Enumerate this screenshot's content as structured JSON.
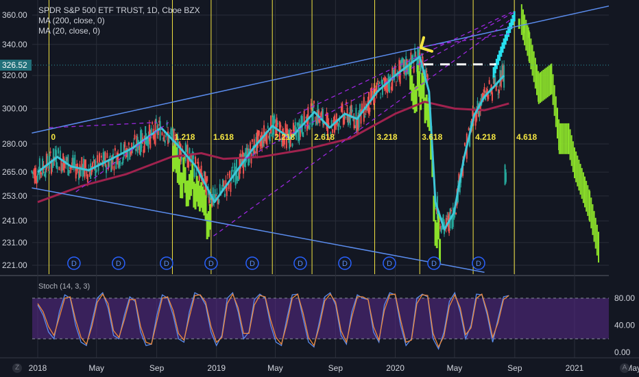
{
  "legend": {
    "title": "SPDR S&P 500 ETF TRUST, 1D, Cboe BZX",
    "ma200": "MA (200, close, 0)",
    "ma20": "MA (20, close, 0)"
  },
  "stoch_label": "Stoch (14, 3, 3)",
  "z_button": "Z",
  "a_button": "A",
  "colors": {
    "background": "#131722",
    "grid": "#2a2e39",
    "vline": "#f5e642",
    "trendline": "#5b8def",
    "dashed": "#9c27e0",
    "ma20": "#3ec6d8",
    "ma200": "#a0224e",
    "forecast": "#8be02a",
    "projection": "#27e0ef",
    "stoch_band": "#5a2a8a",
    "stoch_k": "#5b8def",
    "stoch_d": "#f08a3c",
    "current_price_tag": "#22707a"
  },
  "chart_data": [
    {
      "type": "candlestick",
      "title": "SPDR S&P 500 ETF TRUST, 1D, Cboe BZX",
      "x_tick_labels": [
        "2018",
        "May",
        "Sep",
        "2019",
        "May",
        "Sep",
        "2020",
        "May",
        "Sep",
        "2021",
        "May"
      ],
      "y_tick_labels": [
        "360.00",
        "340.00",
        "320.00",
        "300.00",
        "280.00",
        "265.00",
        "253.00",
        "241.00",
        "231.00",
        "221.00"
      ],
      "y_ticks": [
        360,
        340,
        320,
        300,
        280,
        265,
        253,
        241,
        231,
        221
      ],
      "current_price": 326.52,
      "current_price_label": "326.52",
      "scale": "log",
      "fib_time_labels": [
        "0",
        "1.218",
        "1.618",
        "2.218",
        "2.618",
        "3.218",
        "3.618",
        "4.218",
        "4.618"
      ],
      "fib_time_dates": [
        "2018-01-24",
        "2018-10-03",
        "2018-12-21",
        "2019-04-25",
        "2019-07-15",
        "2019-11-20",
        "2020-02-20",
        "2020-06-08",
        "2020-08-31"
      ],
      "event_markers": [
        "D",
        "D",
        "D",
        "D",
        "D",
        "D",
        "D",
        "D",
        "D",
        "D"
      ],
      "event_dates": [
        "2018-03-16",
        "2018-06-15",
        "2018-09-21",
        "2018-12-21",
        "2019-03-15",
        "2019-06-21",
        "2019-09-20",
        "2019-12-20",
        "2020-03-20",
        "2020-06-19"
      ],
      "series": [
        {
          "name": "MA (20, close, 0)",
          "points": [
            [
              "2018-01-01",
              265
            ],
            [
              "2018-02-10",
              273
            ],
            [
              "2018-03-10",
              268
            ],
            [
              "2018-04-15",
              266
            ],
            [
              "2018-06-01",
              272
            ],
            [
              "2018-07-15",
              278
            ],
            [
              "2018-09-10",
              289
            ],
            [
              "2018-10-15",
              279
            ],
            [
              "2018-11-20",
              268
            ],
            [
              "2018-12-28",
              250
            ],
            [
              "2019-02-01",
              262
            ],
            [
              "2019-03-15",
              277
            ],
            [
              "2019-04-25",
              290
            ],
            [
              "2019-06-01",
              283
            ],
            [
              "2019-07-20",
              298
            ],
            [
              "2019-08-20",
              289
            ],
            [
              "2019-09-20",
              297
            ],
            [
              "2019-10-15",
              294
            ],
            [
              "2019-11-25",
              310
            ],
            [
              "2020-01-01",
              320
            ],
            [
              "2020-02-20",
              332
            ],
            [
              "2020-03-10",
              310
            ],
            [
              "2020-03-23",
              250
            ],
            [
              "2020-04-10",
              237
            ],
            [
              "2020-04-30",
              245
            ],
            [
              "2020-05-20",
              272
            ],
            [
              "2020-06-10",
              296
            ],
            [
              "2020-07-01",
              307
            ],
            [
              "2020-07-20",
              313
            ],
            [
              "2020-08-10",
              320
            ]
          ]
        },
        {
          "name": "MA (200, close, 0)",
          "points": [
            [
              "2018-01-01",
              250
            ],
            [
              "2018-04-01",
              258
            ],
            [
              "2018-07-01",
              264
            ],
            [
              "2018-10-01",
              273
            ],
            [
              "2018-12-01",
              275
            ],
            [
              "2019-01-15",
              272
            ],
            [
              "2019-04-01",
              273
            ],
            [
              "2019-07-01",
              277
            ],
            [
              "2019-10-01",
              283
            ],
            [
              "2020-01-01",
              297
            ],
            [
              "2020-03-01",
              304
            ],
            [
              "2020-05-01",
              300
            ],
            [
              "2020-07-01",
              299
            ],
            [
              "2020-08-20",
              303
            ]
          ]
        },
        {
          "name": "forecast",
          "points": [
            [
              "2020-09-15",
              357
            ],
            [
              "2020-10-01",
              338
            ],
            [
              "2020-10-20",
              312
            ],
            [
              "2020-11-15",
              318
            ],
            [
              "2020-12-01",
              283
            ],
            [
              "2020-12-20",
              283
            ],
            [
              "2021-01-01",
              270
            ],
            [
              "2021-02-01",
              248
            ],
            [
              "2021-02-20",
              228
            ]
          ]
        }
      ],
      "trendlines": [
        {
          "from": [
            "2017-12-20",
            286
          ],
          "to": [
            "2021-03-20",
            367
          ]
        },
        {
          "from": [
            "2017-12-20",
            257
          ],
          "to": [
            "2020-07-01",
            218
          ]
        }
      ]
    },
    {
      "type": "line",
      "title": "Stoch (14, 3, 3)",
      "y_tick_labels": [
        "80.00",
        "40.00",
        "0.00"
      ],
      "y_ticks": [
        80,
        40,
        0
      ],
      "band": [
        20,
        80
      ],
      "series": [
        {
          "name": "%K",
          "values": [
            70,
            55,
            30,
            20,
            60,
            85,
            80,
            40,
            15,
            10,
            45,
            80,
            88,
            65,
            25,
            20,
            55,
            82,
            75,
            30,
            10,
            12,
            55,
            85,
            80,
            55,
            20,
            15,
            60,
            88,
            84,
            70,
            30,
            10,
            25,
            80,
            88,
            60,
            20,
            30,
            78,
            86,
            80,
            40,
            15,
            10,
            50,
            85,
            86,
            50,
            15,
            8,
            45,
            82,
            88,
            70,
            25,
            12,
            60,
            85,
            80,
            78,
            30,
            15,
            70,
            88,
            85,
            40,
            10,
            20,
            80,
            86,
            82,
            20,
            5,
            30,
            75,
            88,
            60,
            20,
            40,
            86,
            85,
            55,
            15,
            50,
            82,
            84
          ]
        },
        {
          "name": "%D",
          "values": [
            72,
            60,
            38,
            25,
            52,
            80,
            82,
            48,
            22,
            12,
            38,
            74,
            86,
            72,
            32,
            22,
            48,
            78,
            78,
            38,
            15,
            12,
            46,
            80,
            82,
            62,
            28,
            18,
            52,
            84,
            85,
            74,
            38,
            15,
            22,
            72,
            86,
            66,
            28,
            28,
            70,
            84,
            82,
            48,
            22,
            12,
            42,
            80,
            86,
            58,
            22,
            10,
            38,
            76,
            86,
            74,
            32,
            15,
            52,
            82,
            82,
            78,
            38,
            18,
            62,
            85,
            86,
            48,
            15,
            18,
            72,
            85,
            84,
            28,
            8,
            24,
            68,
            85,
            66,
            26,
            36,
            80,
            86,
            60,
            22,
            44,
            78,
            84
          ]
        }
      ]
    }
  ]
}
